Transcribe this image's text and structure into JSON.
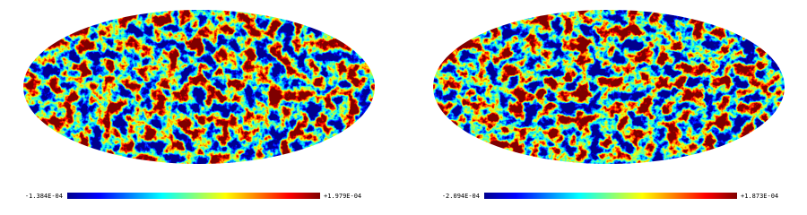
{
  "panels": [
    {
      "min_label": "-1.384E-04",
      "max_label": "+1.979E-04"
    },
    {
      "min_label": "-2.094E-04",
      "max_label": "+1.873E-04"
    }
  ]
}
